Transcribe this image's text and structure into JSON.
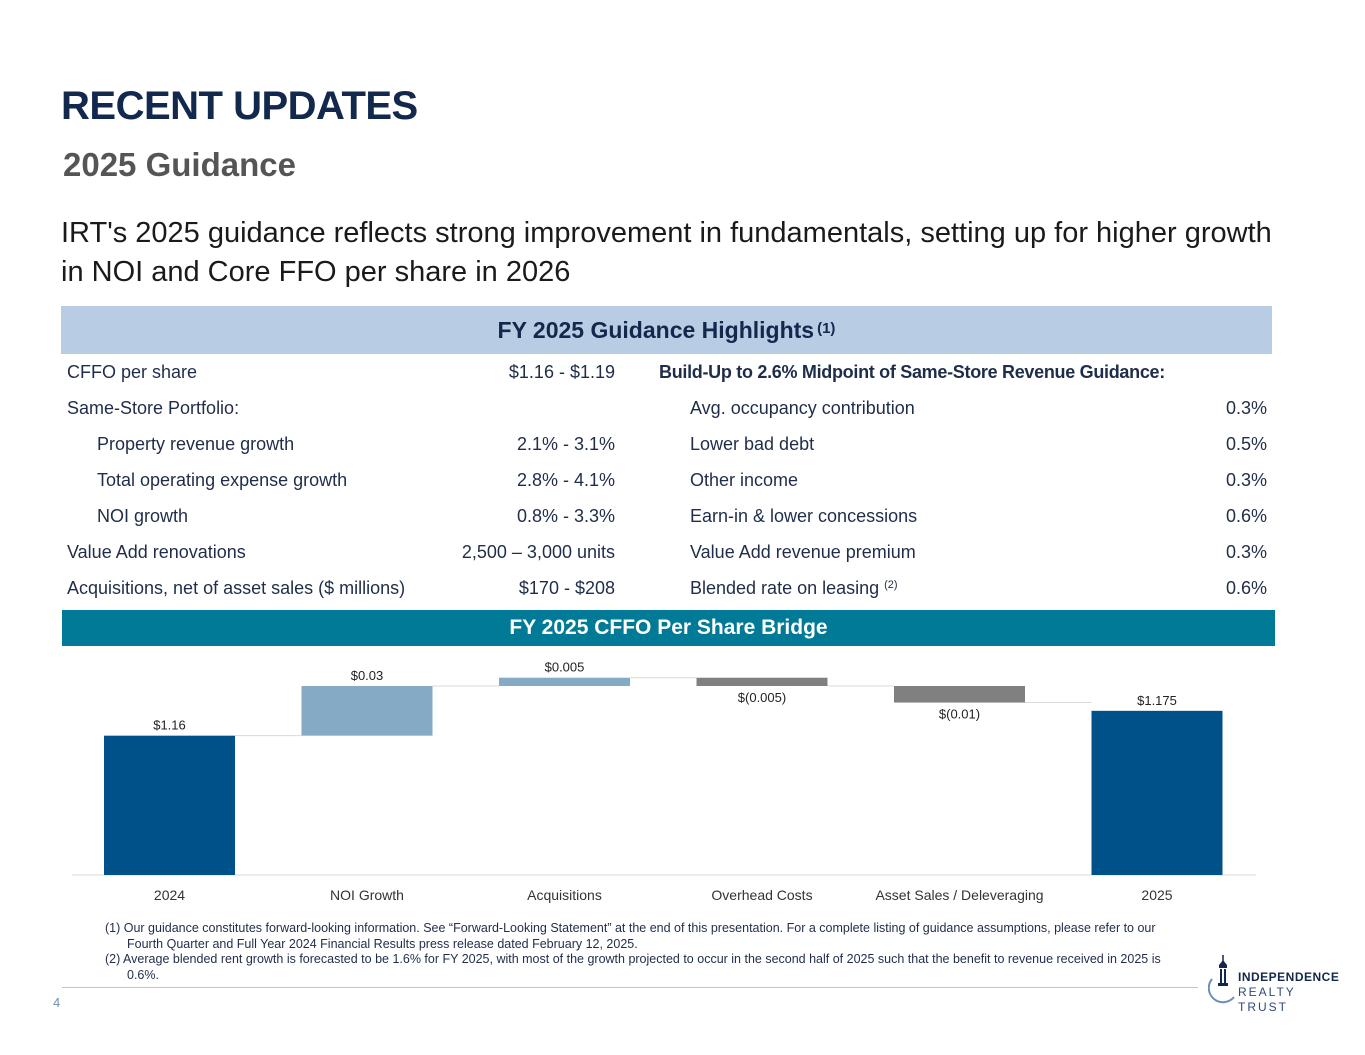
{
  "title": "RECENT UPDATES",
  "subtitle": "2025 Guidance",
  "intro": "IRT's 2025 guidance reflects strong improvement in fundamentals, setting up for higher growth in NOI and Core FFO per share in 2026",
  "highlights": {
    "header": "FY 2025 Guidance Highlights",
    "header_note": "(1)",
    "left_rows": [
      {
        "label": "CFFO per share",
        "value": "$1.16 - $1.19"
      },
      {
        "label": "Same-Store Portfolio:",
        "value": ""
      },
      {
        "label": "Property revenue growth",
        "value": "2.1% - 3.1%"
      },
      {
        "label": "Total operating expense growth",
        "value": "2.8% - 4.1%"
      },
      {
        "label": "NOI growth",
        "value": "0.8% - 3.3%"
      },
      {
        "label": "Value Add renovations",
        "value": "2,500 – 3,000 units"
      },
      {
        "label": "Acquisitions, net of asset sales ($ millions)",
        "value": "$170 - $208"
      }
    ],
    "right_heading": "Build-Up to 2.6% Midpoint of Same-Store Revenue Guidance:",
    "right_rows": [
      {
        "label": "Avg. occupancy contribution",
        "value": "0.3%"
      },
      {
        "label": "Lower bad debt",
        "value": "0.5%"
      },
      {
        "label": "Other income",
        "value": "0.3%"
      },
      {
        "label": "Earn-in & lower concessions",
        "value": "0.6%"
      },
      {
        "label": "Value Add revenue premium",
        "value": "0.3%"
      },
      {
        "label": "Blended rate on leasing",
        "value": "0.6%",
        "note": "(2)"
      }
    ]
  },
  "bridge_header": "FY 2025 CFFO Per Share Bridge",
  "chart_data": {
    "type": "bar",
    "subtype": "waterfall",
    "title": "FY 2025 CFFO Per Share Bridge",
    "categories": [
      "2024",
      "NOI Growth",
      "Acquisitions",
      "Overhead Costs",
      "Asset Sales / Deleveraging",
      "2025"
    ],
    "values": [
      1.16,
      0.03,
      0.005,
      -0.005,
      -0.01,
      1.175
    ],
    "bar_kind": [
      "total",
      "increase",
      "increase",
      "decrease",
      "decrease",
      "total"
    ],
    "labels": [
      "$1.16",
      "$0.03",
      "$0.005",
      "$(0.005)",
      "$(0.01)",
      "$1.175"
    ],
    "colors": {
      "total": "#00518a",
      "increase": "#84aac6",
      "decrease": "#808080"
    },
    "xlabel": "",
    "ylabel": ""
  },
  "footnotes": [
    "(1) Our guidance constitutes forward-looking information. See “Forward-Looking Statement” at the end of this presentation. For a complete listing of guidance assumptions, please refer to our Fourth Quarter and Full Year 2024 Financial Results press release dated February 12, 2025.",
    "(2) Average blended rent growth is forecasted to be 1.6% for FY 2025, with most of the growth projected to occur in the second half of 2025 such that the benefit to revenue received in 2025 is 0.6%."
  ],
  "page_number": "4",
  "logo": {
    "line1": "INDEPENDENCE",
    "line2": "REALTY TRUST"
  }
}
